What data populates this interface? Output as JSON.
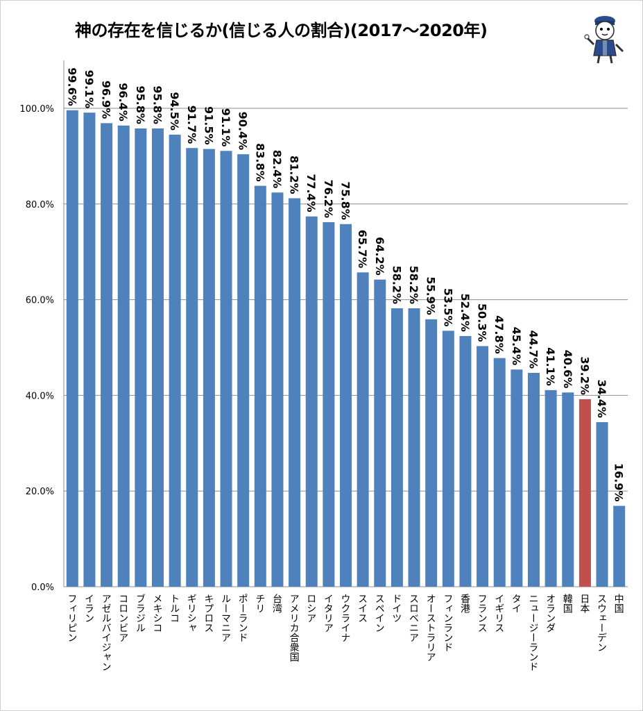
{
  "chart_data": {
    "type": "bar",
    "title": "神の存在を信じるか(信じる人の割合)(2017～2020年)",
    "categories": [
      "フィリピン",
      "イラン",
      "アゼルバイジャン",
      "コロンビア",
      "ブラジル",
      "メキシコ",
      "トルコ",
      "ギリシャ",
      "キプロス",
      "ルーマニア",
      "ポーランド",
      "チリ",
      "台湾",
      "アメリカ合衆国",
      "ロシア",
      "イタリア",
      "ウクライナ",
      "スイス",
      "スペイン",
      "ドイツ",
      "スロベニア",
      "オーストラリア",
      "フィンランド",
      "香港",
      "フランス",
      "イギリス",
      "タイ",
      "ニュージーランド",
      "オランダ",
      "韓国",
      "日本",
      "スウェーデン",
      "中国"
    ],
    "values": [
      99.6,
      99.1,
      96.9,
      96.4,
      95.8,
      95.8,
      94.5,
      91.7,
      91.5,
      91.1,
      90.4,
      83.8,
      82.4,
      81.2,
      77.4,
      76.2,
      75.8,
      65.7,
      64.2,
      58.2,
      58.2,
      55.9,
      53.5,
      52.4,
      50.3,
      47.8,
      45.4,
      44.7,
      41.1,
      40.6,
      39.2,
      34.4,
      16.9
    ],
    "data_labels": [
      "99.6%",
      "99.1%",
      "96.9%",
      "96.4%",
      "95.8%",
      "95.8%",
      "94.5%",
      "91.7%",
      "91.5%",
      "91.1%",
      "90.4%",
      "83.8%",
      "82.4%",
      "81.2%",
      "77.4%",
      "76.2%",
      "75.8%",
      "65.7%",
      "64.2%",
      "58.2%",
      "58.2%",
      "55.9%",
      "53.5%",
      "52.4%",
      "50.3%",
      "47.8%",
      "45.4%",
      "44.7%",
      "41.1%",
      "40.6%",
      "39.2%",
      "34.4%",
      "16.9%"
    ],
    "label_visible": [
      true,
      true,
      true,
      true,
      true,
      true,
      true,
      true,
      true,
      true,
      true,
      true,
      true,
      true,
      true,
      true,
      true,
      true,
      true,
      true,
      true,
      true,
      true,
      true,
      true,
      true,
      true,
      true,
      true,
      true,
      true,
      true,
      true
    ],
    "highlight_category": "日本",
    "y_ticks": [
      "0.0%",
      "20.0%",
      "40.0%",
      "60.0%",
      "80.0%",
      "100.0%"
    ],
    "ylim": [
      0,
      110
    ],
    "grid": true,
    "xlabel": "",
    "ylabel": ""
  },
  "colors": {
    "bar": "#4f81bd",
    "highlight": "#c0504d",
    "grid": "#8c8c8c"
  },
  "icons": {
    "mascot": "cat-mascot-icon"
  }
}
